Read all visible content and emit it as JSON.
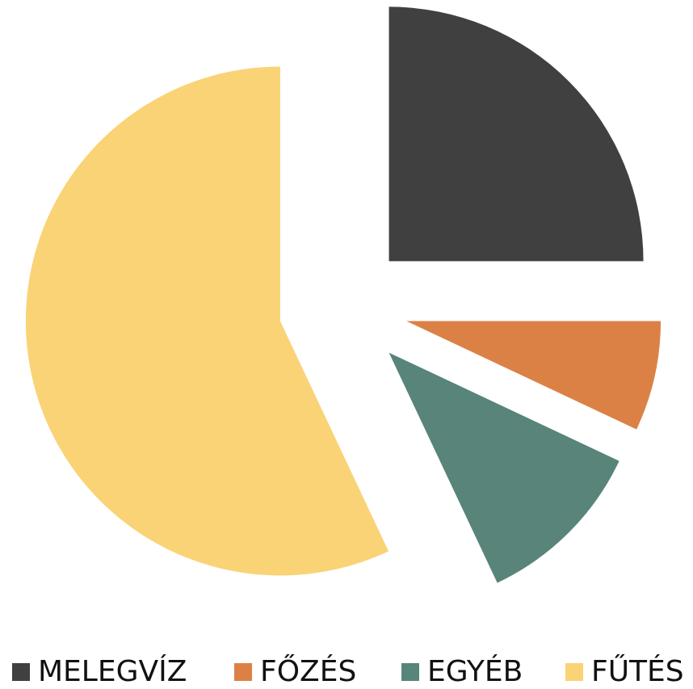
{
  "chart_data": {
    "type": "pie",
    "categories": [
      "MELEGVÍZ",
      "FŐZÉS",
      "EGYÉB",
      "FŰTÉS"
    ],
    "values": [
      25,
      7,
      11,
      57
    ],
    "colors": [
      "#404040",
      "#dc8146",
      "#58847a",
      "#f9d375"
    ],
    "legend": "bottom"
  }
}
